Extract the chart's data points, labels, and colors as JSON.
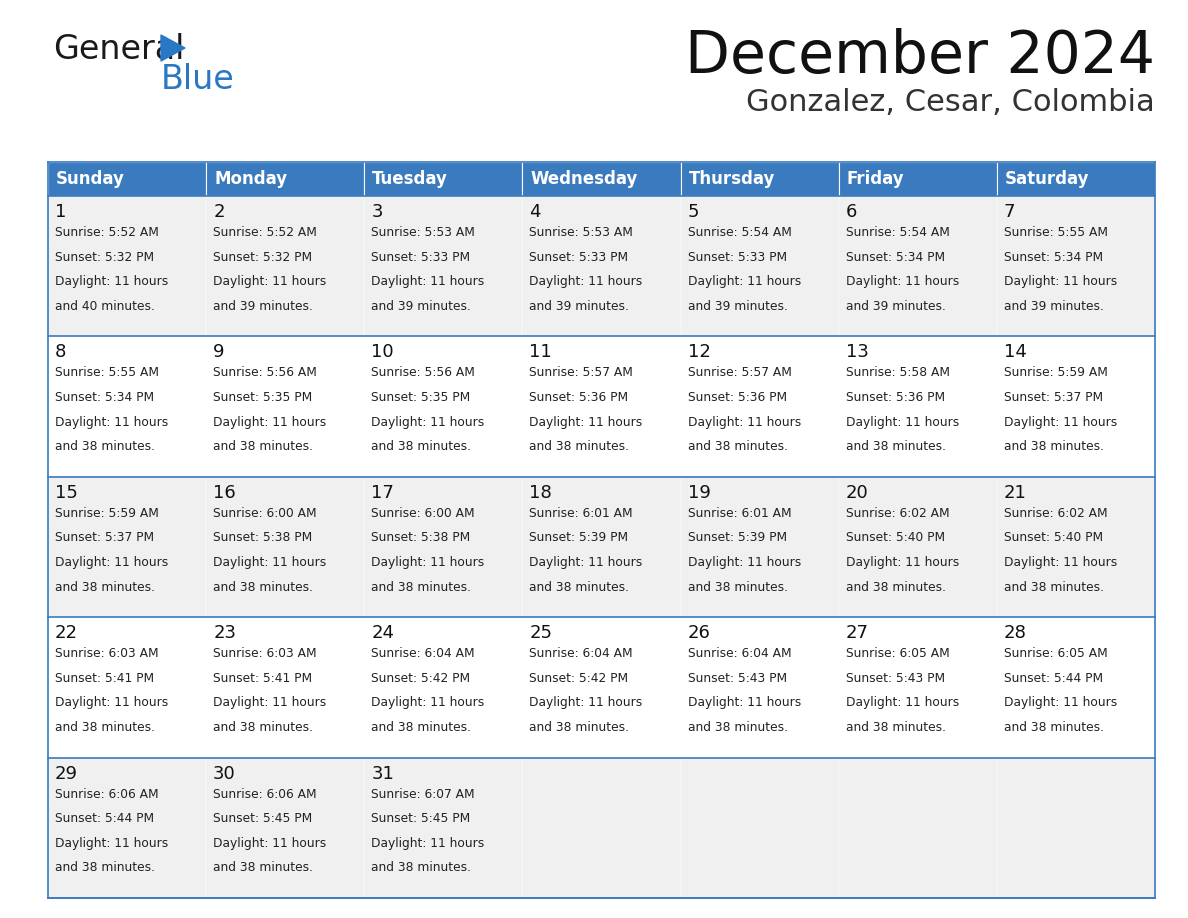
{
  "title": "December 2024",
  "subtitle": "Gonzalez, Cesar, Colombia",
  "header_bg": "#3a7abf",
  "header_text": "#ffffff",
  "row_bg_odd": "#f0f0f0",
  "row_bg_even": "#ffffff",
  "border_color": "#3a7abf",
  "days_of_week": [
    "Sunday",
    "Monday",
    "Tuesday",
    "Wednesday",
    "Thursday",
    "Friday",
    "Saturday"
  ],
  "calendar": [
    [
      {
        "day": 1,
        "sunrise": "5:52 AM",
        "sunset": "5:32 PM",
        "daylight": "11 hours and 40 minutes."
      },
      {
        "day": 2,
        "sunrise": "5:52 AM",
        "sunset": "5:32 PM",
        "daylight": "11 hours and 39 minutes."
      },
      {
        "day": 3,
        "sunrise": "5:53 AM",
        "sunset": "5:33 PM",
        "daylight": "11 hours and 39 minutes."
      },
      {
        "day": 4,
        "sunrise": "5:53 AM",
        "sunset": "5:33 PM",
        "daylight": "11 hours and 39 minutes."
      },
      {
        "day": 5,
        "sunrise": "5:54 AM",
        "sunset": "5:33 PM",
        "daylight": "11 hours and 39 minutes."
      },
      {
        "day": 6,
        "sunrise": "5:54 AM",
        "sunset": "5:34 PM",
        "daylight": "11 hours and 39 minutes."
      },
      {
        "day": 7,
        "sunrise": "5:55 AM",
        "sunset": "5:34 PM",
        "daylight": "11 hours and 39 minutes."
      }
    ],
    [
      {
        "day": 8,
        "sunrise": "5:55 AM",
        "sunset": "5:34 PM",
        "daylight": "11 hours and 38 minutes."
      },
      {
        "day": 9,
        "sunrise": "5:56 AM",
        "sunset": "5:35 PM",
        "daylight": "11 hours and 38 minutes."
      },
      {
        "day": 10,
        "sunrise": "5:56 AM",
        "sunset": "5:35 PM",
        "daylight": "11 hours and 38 minutes."
      },
      {
        "day": 11,
        "sunrise": "5:57 AM",
        "sunset": "5:36 PM",
        "daylight": "11 hours and 38 minutes."
      },
      {
        "day": 12,
        "sunrise": "5:57 AM",
        "sunset": "5:36 PM",
        "daylight": "11 hours and 38 minutes."
      },
      {
        "day": 13,
        "sunrise": "5:58 AM",
        "sunset": "5:36 PM",
        "daylight": "11 hours and 38 minutes."
      },
      {
        "day": 14,
        "sunrise": "5:59 AM",
        "sunset": "5:37 PM",
        "daylight": "11 hours and 38 minutes."
      }
    ],
    [
      {
        "day": 15,
        "sunrise": "5:59 AM",
        "sunset": "5:37 PM",
        "daylight": "11 hours and 38 minutes."
      },
      {
        "day": 16,
        "sunrise": "6:00 AM",
        "sunset": "5:38 PM",
        "daylight": "11 hours and 38 minutes."
      },
      {
        "day": 17,
        "sunrise": "6:00 AM",
        "sunset": "5:38 PM",
        "daylight": "11 hours and 38 minutes."
      },
      {
        "day": 18,
        "sunrise": "6:01 AM",
        "sunset": "5:39 PM",
        "daylight": "11 hours and 38 minutes."
      },
      {
        "day": 19,
        "sunrise": "6:01 AM",
        "sunset": "5:39 PM",
        "daylight": "11 hours and 38 minutes."
      },
      {
        "day": 20,
        "sunrise": "6:02 AM",
        "sunset": "5:40 PM",
        "daylight": "11 hours and 38 minutes."
      },
      {
        "day": 21,
        "sunrise": "6:02 AM",
        "sunset": "5:40 PM",
        "daylight": "11 hours and 38 minutes."
      }
    ],
    [
      {
        "day": 22,
        "sunrise": "6:03 AM",
        "sunset": "5:41 PM",
        "daylight": "11 hours and 38 minutes."
      },
      {
        "day": 23,
        "sunrise": "6:03 AM",
        "sunset": "5:41 PM",
        "daylight": "11 hours and 38 minutes."
      },
      {
        "day": 24,
        "sunrise": "6:04 AM",
        "sunset": "5:42 PM",
        "daylight": "11 hours and 38 minutes."
      },
      {
        "day": 25,
        "sunrise": "6:04 AM",
        "sunset": "5:42 PM",
        "daylight": "11 hours and 38 minutes."
      },
      {
        "day": 26,
        "sunrise": "6:04 AM",
        "sunset": "5:43 PM",
        "daylight": "11 hours and 38 minutes."
      },
      {
        "day": 27,
        "sunrise": "6:05 AM",
        "sunset": "5:43 PM",
        "daylight": "11 hours and 38 minutes."
      },
      {
        "day": 28,
        "sunrise": "6:05 AM",
        "sunset": "5:44 PM",
        "daylight": "11 hours and 38 minutes."
      }
    ],
    [
      {
        "day": 29,
        "sunrise": "6:06 AM",
        "sunset": "5:44 PM",
        "daylight": "11 hours and 38 minutes."
      },
      {
        "day": 30,
        "sunrise": "6:06 AM",
        "sunset": "5:45 PM",
        "daylight": "11 hours and 38 minutes."
      },
      {
        "day": 31,
        "sunrise": "6:07 AM",
        "sunset": "5:45 PM",
        "daylight": "11 hours and 38 minutes."
      },
      null,
      null,
      null,
      null
    ]
  ],
  "logo_general_color": "#1a1a1a",
  "logo_blue_color": "#2878c3",
  "logo_triangle_color": "#2878c3"
}
